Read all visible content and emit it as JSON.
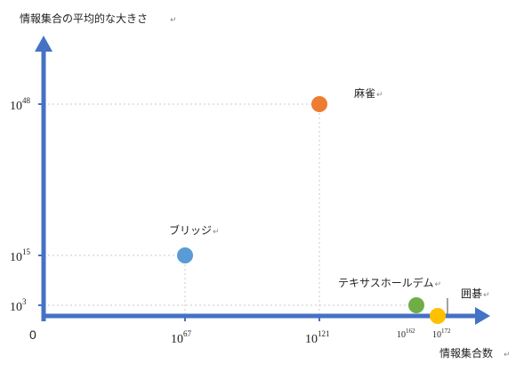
{
  "chart_data": {
    "type": "scatter",
    "ylabel": "情報集合の平均的な大きさ",
    "xlabel": "情報集合数",
    "origin_label": "0",
    "scale": "log",
    "x_ticks": [
      {
        "base": "10",
        "exp": "67"
      },
      {
        "base": "10",
        "exp": "121"
      },
      {
        "base": "10",
        "exp": "162"
      },
      {
        "base": "10",
        "exp": "172"
      }
    ],
    "y_ticks": [
      {
        "base": "10",
        "exp": "3"
      },
      {
        "base": "10",
        "exp": "15"
      },
      {
        "base": "10",
        "exp": "48"
      }
    ],
    "points": [
      {
        "label": "ブリッジ",
        "x": 67,
        "y": 15,
        "color": "#5b9bd5"
      },
      {
        "label": "麻雀",
        "x": 121,
        "y": 48,
        "color": "#ed7d31"
      },
      {
        "label": "テキサスホールデム",
        "x": 162,
        "y": 3,
        "color": "#70ad47"
      },
      {
        "label": "囲碁",
        "x": 172,
        "y": 0,
        "color": "#ffc000"
      }
    ],
    "axis_color": "#4472c4",
    "grid": false
  }
}
